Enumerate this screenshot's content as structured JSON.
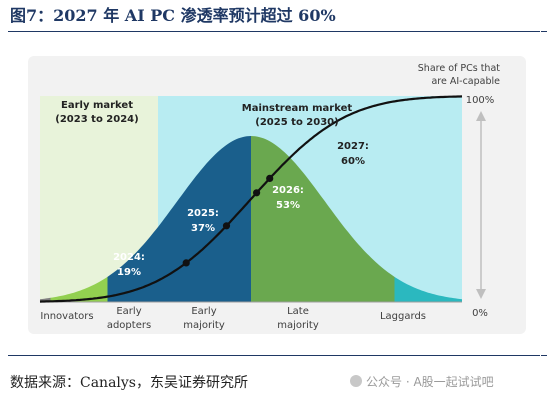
{
  "figure_title": "图7：2027 年 AI PC 渗透率预计超过 60%",
  "source_text": "数据来源：Canalys，东吴证券研究所",
  "watermark_text": "公众号 · A股一起试试吧",
  "chart_data": {
    "type": "area",
    "title": "",
    "axis_title": [
      "Share of PCs that",
      "are AI-capable"
    ],
    "ylim": [
      0,
      100
    ],
    "y_tick_labels": [
      "100%",
      "0%"
    ],
    "phases": [
      {
        "label": [
          "Early market",
          "(2023 to 2024)"
        ],
        "color": "#e8f3da"
      },
      {
        "label": [
          "Mainstream market",
          "(2025 to 2030)"
        ],
        "color": "#b8ecf2"
      }
    ],
    "segments": [
      {
        "name": "Innovators",
        "label": [
          "Innovators"
        ],
        "start": 0,
        "end": 2.5,
        "color": "#7f7f7f"
      },
      {
        "name": "Early adopters",
        "label": [
          "Early",
          "adopters"
        ],
        "start": 2.5,
        "end": 16,
        "color": "#92d050"
      },
      {
        "name": "Early majority",
        "label": [
          "Early",
          "majority"
        ],
        "start": 16,
        "end": 50,
        "color": "#1a5f8c"
      },
      {
        "name": "Late majority",
        "label": [
          "Late",
          "majority"
        ],
        "start": 50,
        "end": 84,
        "color": "#6aa84f"
      },
      {
        "name": "Laggards",
        "label": [
          "Laggards"
        ],
        "start": 84,
        "end": 100,
        "color": "#2bb8bf"
      }
    ],
    "adoption_points": [
      {
        "year": "2024",
        "value": 19,
        "label": [
          "2024:",
          "19%"
        ]
      },
      {
        "year": "2025",
        "value": 37,
        "label": [
          "2025:",
          "37%"
        ]
      },
      {
        "year": "2026",
        "value": 53,
        "label": [
          "2026:",
          "53%"
        ]
      },
      {
        "year": "2027",
        "value": 60,
        "label": [
          "2027:",
          "60%"
        ]
      }
    ],
    "colors": {
      "panel": "#f2f2f2",
      "s_curve": "#111111",
      "label_light": "#ffffff",
      "axis_text": "#404040",
      "heading_text": "#222222",
      "arrow": "#bfbfbf"
    }
  }
}
